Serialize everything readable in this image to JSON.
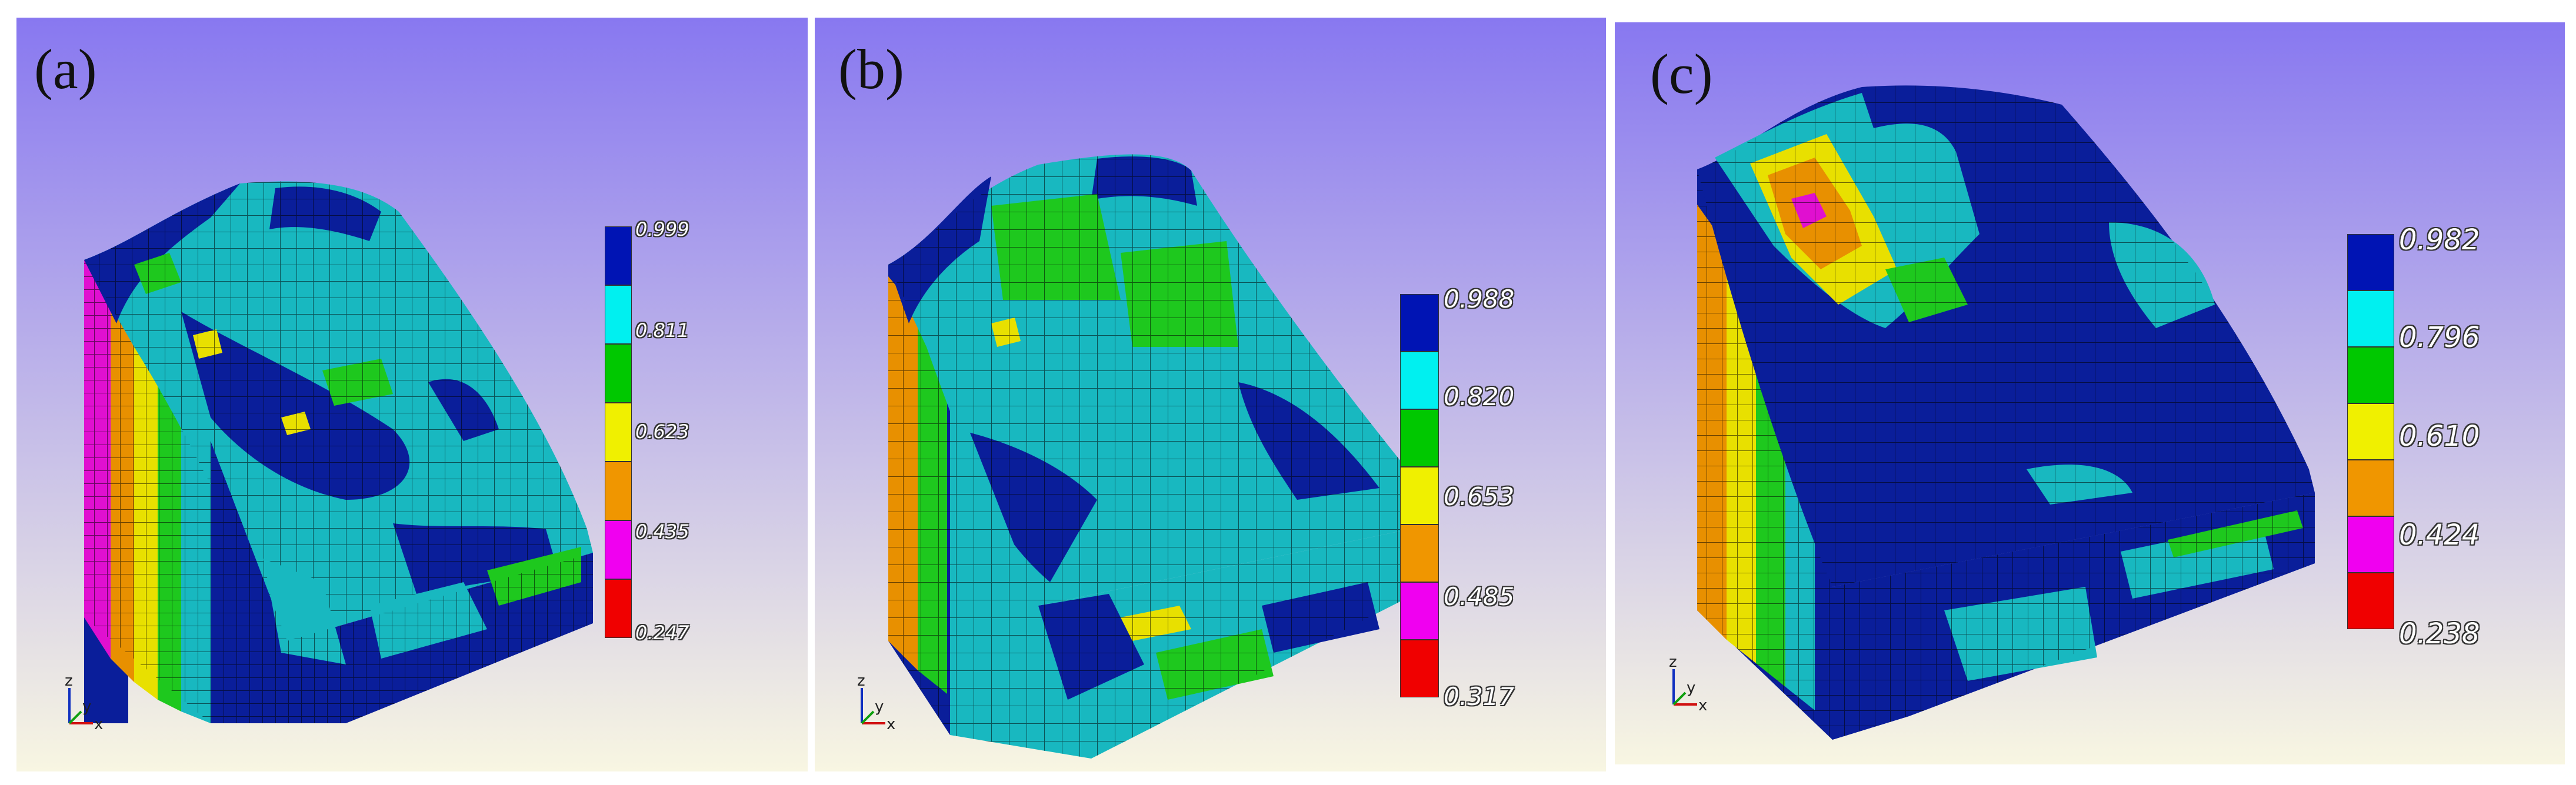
{
  "panels": [
    {
      "label": "(a)",
      "legend": [
        "0.999",
        "0.811",
        "0.623",
        "0.435",
        "0.247"
      ],
      "colors": [
        "#0014b4",
        "#00f0f0",
        "#00c800",
        "#f0f000",
        "#f09600",
        "#f000f0",
        "#f00000"
      ],
      "triad": {
        "z": "z",
        "x": "x",
        "y": "y"
      }
    },
    {
      "label": "(b)",
      "legend": [
        "0.988",
        "0.820",
        "0.653",
        "0.485",
        "0.317"
      ],
      "colors": [
        "#0014b4",
        "#00f0f0",
        "#00c800",
        "#f0f000",
        "#f09600",
        "#f000f0",
        "#f00000"
      ],
      "triad": {
        "z": "z",
        "x": "x",
        "y": "y"
      }
    },
    {
      "label": "(c)",
      "legend": [
        "0.982",
        "0.796",
        "0.610",
        "0.424",
        "0.238"
      ],
      "colors": [
        "#0014b4",
        "#00f0f0",
        "#00c800",
        "#f0f000",
        "#f09600",
        "#f000f0",
        "#f00000"
      ],
      "triad": {
        "z": "z",
        "x": "x",
        "y": "y"
      }
    }
  ],
  "mesh_colors": {
    "dark_blue": "#0a1e9a",
    "cyan": "#18b8c0",
    "green": "#1ec81e",
    "yellow": "#e8e000",
    "orange": "#e89000",
    "magenta": "#e010d0",
    "red": "#e81010"
  },
  "background": {
    "top": "#8878f0",
    "bottom": "#f8f6e2"
  }
}
